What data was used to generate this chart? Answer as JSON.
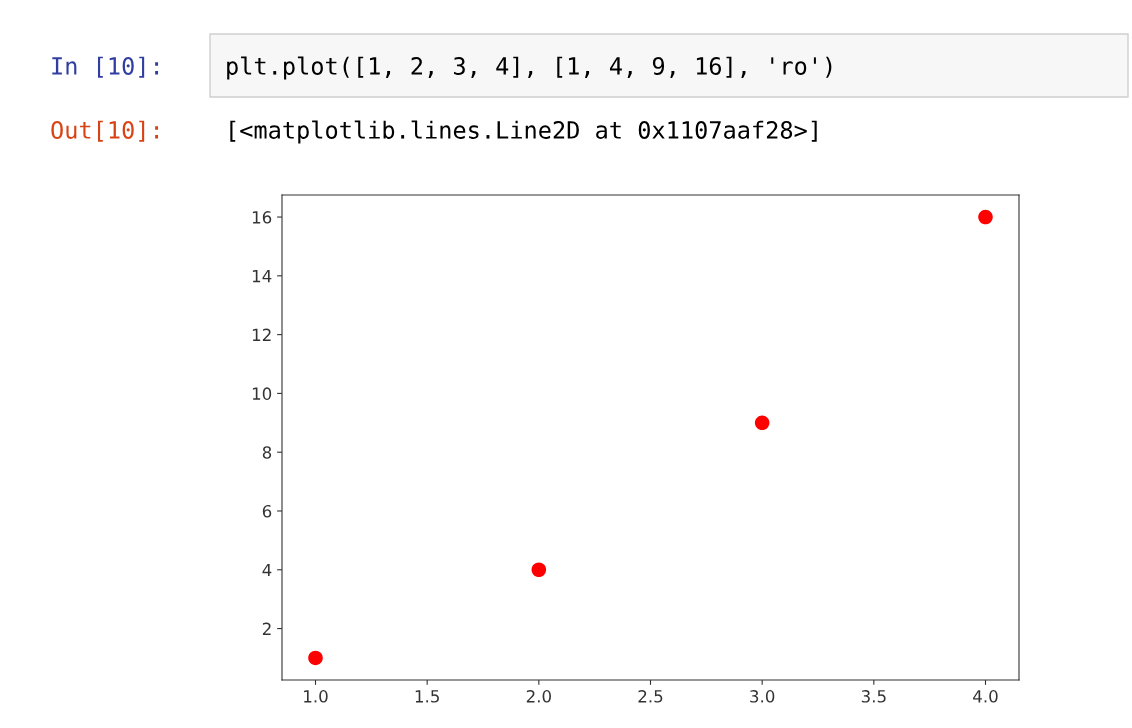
{
  "chart_data": {
    "type": "scatter",
    "x": [
      1,
      2,
      3,
      4
    ],
    "series": [
      {
        "color": "#ff0000",
        "values": [
          1,
          4,
          9,
          16
        ]
      }
    ],
    "marker": "circle",
    "xlim": [
      0.85,
      4.15
    ],
    "xticks": [
      {
        "value": 1,
        "label": "1.0"
      },
      {
        "value": 1.5,
        "label": "1.5"
      },
      {
        "value": 2,
        "label": "2.0"
      },
      {
        "value": 2.5,
        "label": "2.5"
      },
      {
        "value": 3,
        "label": "3.0"
      },
      {
        "value": 3.5,
        "label": "3.5"
      },
      {
        "value": 4,
        "label": "4.0"
      }
    ],
    "ylim": [
      0.25,
      16.75
    ],
    "yticks": [
      2,
      4,
      6,
      8,
      10,
      12,
      14,
      16
    ],
    "grid": false,
    "legend": false,
    "annotations": [
      "In [10]:",
      "plt.plot([1, 2, 3, 4], [1, 4, 9, 16], 'ro')",
      "Out[10]:",
      "[<matplotlib.lines.Line2D at 0x1107aaf28>]"
    ]
  }
}
